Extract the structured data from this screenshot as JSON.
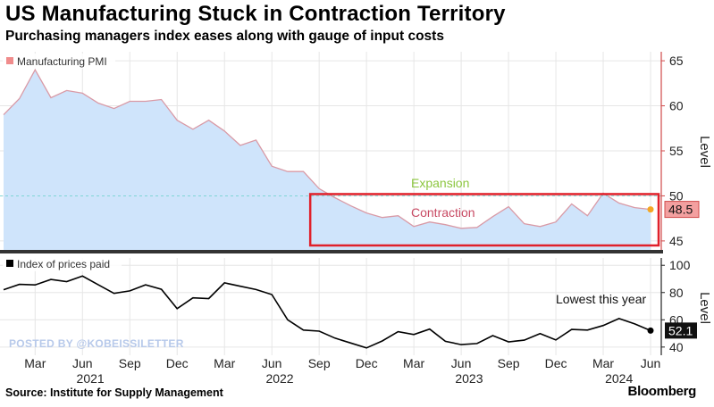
{
  "title": "US Manufacturing Stuck in Contraction Territory",
  "subtitle": "Purchasing managers index eases along with gauge of input costs",
  "source": "Source: Institute for Supply Management",
  "brand": "Bloomberg",
  "watermark": "POSTED BY @KOBEISSILETTER",
  "colors": {
    "pmi_fill": "#cfe4fb",
    "pmi_line": "#d99aa6",
    "legend_pmi": "#f08c8c",
    "prices_line": "#000000",
    "highlight_box": "#e0202a",
    "expansion_text": "#8cc63f",
    "contraction_text": "#c84a63",
    "endpoint": "#f5a623",
    "axis_color": "#d04a4a"
  },
  "chart_data": [
    {
      "type": "area",
      "legend": "Manufacturing PMI",
      "ylabel": "Level",
      "ylim": [
        44,
        66
      ],
      "yticks": [
        45,
        50,
        55,
        60,
        65
      ],
      "threshold": 50,
      "annotations": {
        "above": "Expansion",
        "below": "Contraction"
      },
      "last_value_label": "48.5",
      "x": [
        "2021-01",
        "2021-02",
        "2021-03",
        "2021-04",
        "2021-05",
        "2021-06",
        "2021-07",
        "2021-08",
        "2021-09",
        "2021-10",
        "2021-11",
        "2021-12",
        "2022-01",
        "2022-02",
        "2022-03",
        "2022-04",
        "2022-05",
        "2022-06",
        "2022-07",
        "2022-08",
        "2022-09",
        "2022-10",
        "2022-11",
        "2022-12",
        "2023-01",
        "2023-02",
        "2023-03",
        "2023-04",
        "2023-05",
        "2023-06",
        "2023-07",
        "2023-08",
        "2023-09",
        "2023-10",
        "2023-11",
        "2023-12",
        "2024-01",
        "2024-02",
        "2024-03",
        "2024-04",
        "2024-05",
        "2024-06"
      ],
      "values": [
        59.0,
        60.8,
        64.0,
        60.9,
        61.7,
        61.4,
        60.3,
        59.7,
        60.5,
        60.5,
        60.7,
        58.4,
        57.4,
        58.4,
        57.2,
        55.6,
        56.2,
        53.3,
        52.7,
        52.7,
        50.8,
        49.8,
        48.9,
        48.1,
        47.6,
        47.8,
        46.6,
        47.1,
        46.8,
        46.4,
        46.5,
        47.7,
        48.8,
        46.9,
        46.6,
        47.1,
        49.1,
        47.8,
        50.3,
        49.2,
        48.7,
        48.5
      ]
    },
    {
      "type": "line",
      "legend": "Index of prices paid",
      "ylabel": "Level",
      "ylim": [
        34,
        108
      ],
      "yticks": [
        40,
        60,
        80,
        100
      ],
      "annotation": "Lowest this year",
      "last_value_label": "52.1",
      "x": [
        "2021-01",
        "2021-02",
        "2021-03",
        "2021-04",
        "2021-05",
        "2021-06",
        "2021-07",
        "2021-08",
        "2021-09",
        "2021-10",
        "2021-11",
        "2021-12",
        "2022-01",
        "2022-02",
        "2022-03",
        "2022-04",
        "2022-05",
        "2022-06",
        "2022-07",
        "2022-08",
        "2022-09",
        "2022-10",
        "2022-11",
        "2022-12",
        "2023-01",
        "2023-02",
        "2023-03",
        "2023-04",
        "2023-05",
        "2023-06",
        "2023-07",
        "2023-08",
        "2023-09",
        "2023-10",
        "2023-11",
        "2023-12",
        "2024-01",
        "2024-02",
        "2024-03",
        "2024-04",
        "2024-05",
        "2024-06"
      ],
      "values": [
        82.1,
        86.0,
        85.6,
        89.6,
        88.0,
        92.1,
        85.7,
        79.4,
        81.2,
        85.7,
        82.4,
        68.2,
        76.1,
        75.6,
        87.1,
        84.6,
        82.2,
        78.5,
        60.0,
        52.5,
        51.7,
        46.6,
        43.0,
        39.4,
        44.5,
        51.3,
        49.2,
        53.2,
        44.2,
        41.8,
        42.6,
        48.4,
        43.8,
        45.1,
        49.9,
        45.2,
        52.9,
        52.5,
        55.8,
        60.9,
        57.0,
        52.1
      ]
    }
  ],
  "x_axis": {
    "month_ticks": [
      "Mar",
      "Jun",
      "Sep",
      "Dec",
      "Mar",
      "Jun",
      "Sep",
      "Dec",
      "Mar",
      "Jun",
      "Sep",
      "Dec",
      "Mar",
      "Jun"
    ],
    "year_labels": [
      "2021",
      "2022",
      "2023",
      "2024"
    ]
  }
}
